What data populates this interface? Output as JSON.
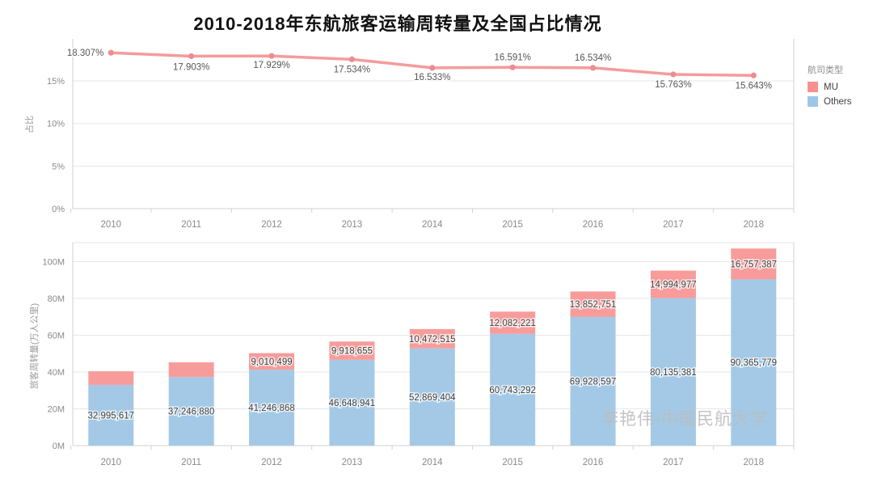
{
  "title": "2010-2018年东航旅客运输周转量及全国占比情况",
  "watermark": "李艳伟-中国民航大学",
  "legend": {
    "title": "航司类型",
    "items": [
      {
        "label": "MU",
        "color": "#F8908F"
      },
      {
        "label": "Others",
        "color": "#9EC6E6"
      }
    ]
  },
  "colors": {
    "line": "#F59B9C",
    "line_marker": "#EE8D8E",
    "bar_mu": "#F89C9B",
    "bar_others": "#A3C9E6",
    "grid": "#E7E7E7",
    "axis_text": "#8A8A8A"
  },
  "chart_data": [
    {
      "type": "line",
      "name": "national-share-line",
      "ylabel": "占比",
      "x": [
        "2010",
        "2011",
        "2012",
        "2013",
        "2014",
        "2015",
        "2016",
        "2017",
        "2018"
      ],
      "series": [
        {
          "name": "MU",
          "values": [
            18.307,
            17.903,
            17.929,
            17.534,
            16.533,
            16.591,
            16.534,
            15.763,
            15.643
          ]
        }
      ],
      "point_labels": [
        "18.307%",
        "17.903%",
        "17.929%",
        "17.534%",
        "16.533%",
        "16.591%",
        "16.534%",
        "15.763%",
        "15.643%"
      ],
      "yticks": [
        {
          "value": 0,
          "label": "0%"
        },
        {
          "value": 5,
          "label": "5%"
        },
        {
          "value": 10,
          "label": "10%"
        },
        {
          "value": 15,
          "label": "15%"
        }
      ],
      "ylim": [
        0,
        19.9
      ],
      "grid": true,
      "legend_position": "right"
    },
    {
      "type": "stacked-bar",
      "name": "rpk-stacked-bars",
      "ylabel": "旅客周转量(万人公里)",
      "categories": [
        "2010",
        "2011",
        "2012",
        "2013",
        "2014",
        "2015",
        "2016",
        "2017",
        "2018"
      ],
      "series": [
        {
          "name": "Others",
          "values": [
            32995617,
            37246880,
            41246868,
            46648941,
            52869404,
            60743292,
            69928597,
            80135381,
            90365779
          ],
          "labels": [
            "32,995,617",
            "37,246,880",
            "41,246,868",
            "46,648,941",
            "52,869,404",
            "60,743,292",
            "69,928,597",
            "80,135,381",
            "90,365,779"
          ]
        },
        {
          "name": "MU",
          "values": [
            7400000,
            8000000,
            9010499,
            9918655,
            10472515,
            12082221,
            13852751,
            14994977,
            16757387
          ],
          "labels": [
            "",
            "",
            "9,010,499",
            "9,918,655",
            "10,472,515",
            "12,082,221",
            "13,852,751",
            "14,994,977",
            "16,757,387"
          ],
          "note": "first two segment values unlabeled in chart; estimated from bar heights"
        }
      ],
      "yticks": [
        {
          "value": 0,
          "label": "0M"
        },
        {
          "value": 20000000,
          "label": "20M"
        },
        {
          "value": 40000000,
          "label": "40M"
        },
        {
          "value": 60000000,
          "label": "60M"
        },
        {
          "value": 80000000,
          "label": "80M"
        },
        {
          "value": 100000000,
          "label": "100M"
        }
      ],
      "ylim": [
        0,
        110000000
      ],
      "grid": true
    }
  ]
}
